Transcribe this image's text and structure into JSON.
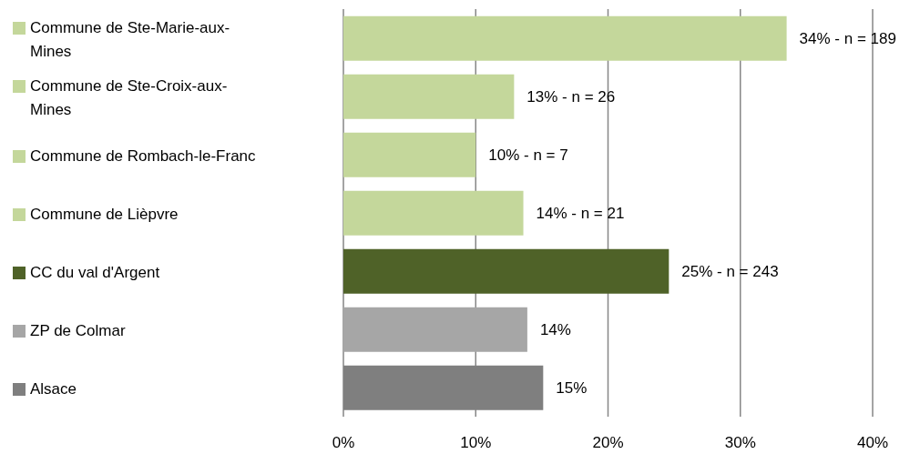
{
  "chart_data": {
    "type": "bar",
    "orientation": "horizontal",
    "categories": [
      "Commune de Ste-Marie-aux-Mines",
      "Commune de Ste-Croix-aux-Mines",
      "Commune de Rombach-le-Franc",
      "Commune de Lièpvre",
      "CC du val d'Argent",
      "ZP de Colmar",
      "Alsace"
    ],
    "values": [
      33.5,
      12.9,
      10,
      13.6,
      24.6,
      13.9,
      15.1
    ],
    "colors": [
      "#c4d79b",
      "#c4d79b",
      "#c4d79b",
      "#c4d79b",
      "#4f6228",
      "#a6a6a6",
      "#7f7f7f"
    ],
    "value_labels": [
      "34% - n = 189",
      "13% - n = 26",
      "10% - n = 7",
      "14% - n = 21",
      "25% - n = 243",
      "14%",
      "15%"
    ],
    "xlim": [
      0,
      40
    ],
    "xticks": [
      {
        "value": 0,
        "label": "0%"
      },
      {
        "value": 10,
        "label": "10%"
      },
      {
        "value": 20,
        "label": "20%"
      },
      {
        "value": 30,
        "label": "30%"
      },
      {
        "value": 40,
        "label": "40%"
      }
    ],
    "grid": "x"
  }
}
